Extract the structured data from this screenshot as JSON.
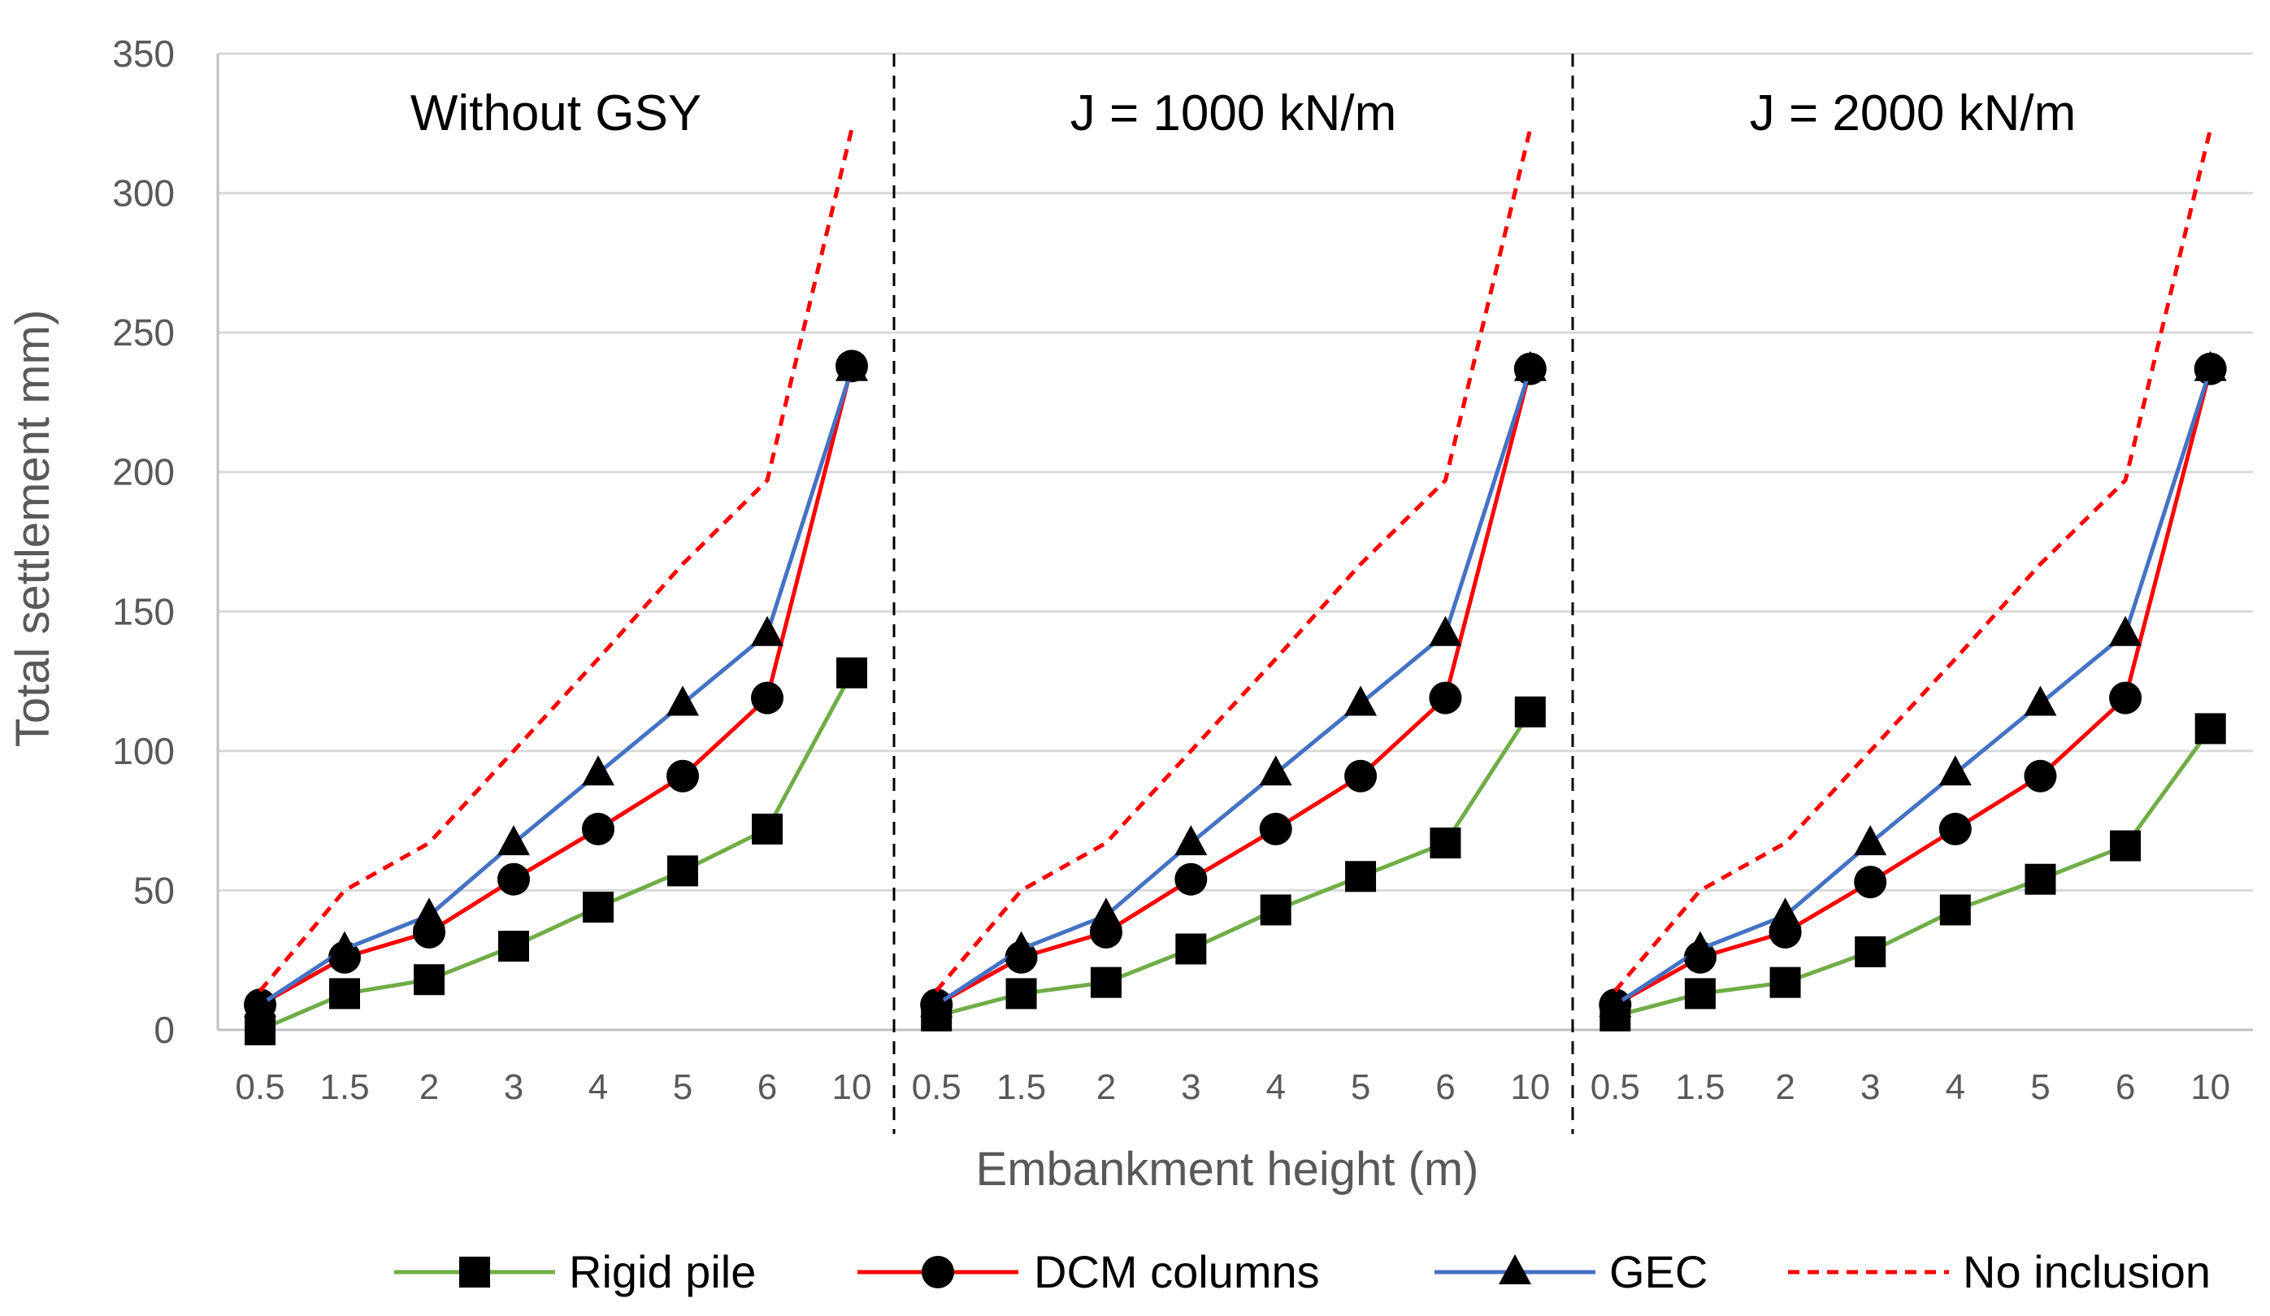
{
  "chart_data": {
    "type": "line",
    "ylabel": "Total settlement mm)",
    "xlabel": "Embankment height (m)",
    "ylim": [
      0,
      350
    ],
    "yticks": [
      0,
      50,
      100,
      150,
      200,
      250,
      300,
      350
    ],
    "categories": [
      "0.5",
      "1.5",
      "2",
      "3",
      "4",
      "5",
      "6",
      "10"
    ],
    "grid": true,
    "legend_position": "bottom",
    "series_styles": [
      {
        "name": "Rigid pile",
        "color": "#70AD47",
        "marker": "square",
        "dash": "solid"
      },
      {
        "name": "DCM columns",
        "color": "#FF0000",
        "marker": "circle",
        "dash": "solid"
      },
      {
        "name": "GEC",
        "color": "#4472C4",
        "marker": "triangle",
        "dash": "solid"
      },
      {
        "name": "No inclusion",
        "color": "#FF0000",
        "marker": "none",
        "dash": "dashed"
      }
    ],
    "panels": [
      {
        "title": "Without GSY",
        "series": [
          {
            "name": "Rigid pile",
            "values": [
              0,
              13,
              18,
              30,
              44,
              57,
              72,
              128
            ]
          },
          {
            "name": "DCM columns",
            "values": [
              9,
              26,
              35,
              54,
              72,
              91,
              119,
              238
            ]
          },
          {
            "name": "GEC",
            "values": [
              9,
              29,
              41,
              67,
              92,
              117,
              142,
              237
            ]
          },
          {
            "name": "No inclusion",
            "values": [
              14,
              50,
              67,
              100,
              133,
              167,
              197,
              323
            ]
          }
        ]
      },
      {
        "title": "J = 1000 kN/m",
        "series": [
          {
            "name": "Rigid pile",
            "values": [
              5,
              13,
              17,
              29,
              43,
              55,
              67,
              114
            ]
          },
          {
            "name": "DCM columns",
            "values": [
              9,
              26,
              35,
              54,
              72,
              91,
              119,
              237
            ]
          },
          {
            "name": "GEC",
            "values": [
              9,
              29,
              41,
              67,
              92,
              117,
              142,
              237
            ]
          },
          {
            "name": "No inclusion",
            "values": [
              14,
              50,
              67,
              100,
              133,
              167,
              197,
              323
            ]
          }
        ]
      },
      {
        "title": "J = 2000 kN/m",
        "series": [
          {
            "name": "Rigid pile",
            "values": [
              5,
              13,
              17,
              28,
              43,
              54,
              66,
              108
            ]
          },
          {
            "name": "DCM columns",
            "values": [
              9,
              26,
              35,
              53,
              72,
              91,
              119,
              237
            ]
          },
          {
            "name": "GEC",
            "values": [
              9,
              29,
              41,
              67,
              92,
              117,
              142,
              237
            ]
          },
          {
            "name": "No inclusion",
            "values": [
              14,
              50,
              67,
              100,
              133,
              167,
              197,
              323
            ]
          }
        ]
      }
    ]
  }
}
